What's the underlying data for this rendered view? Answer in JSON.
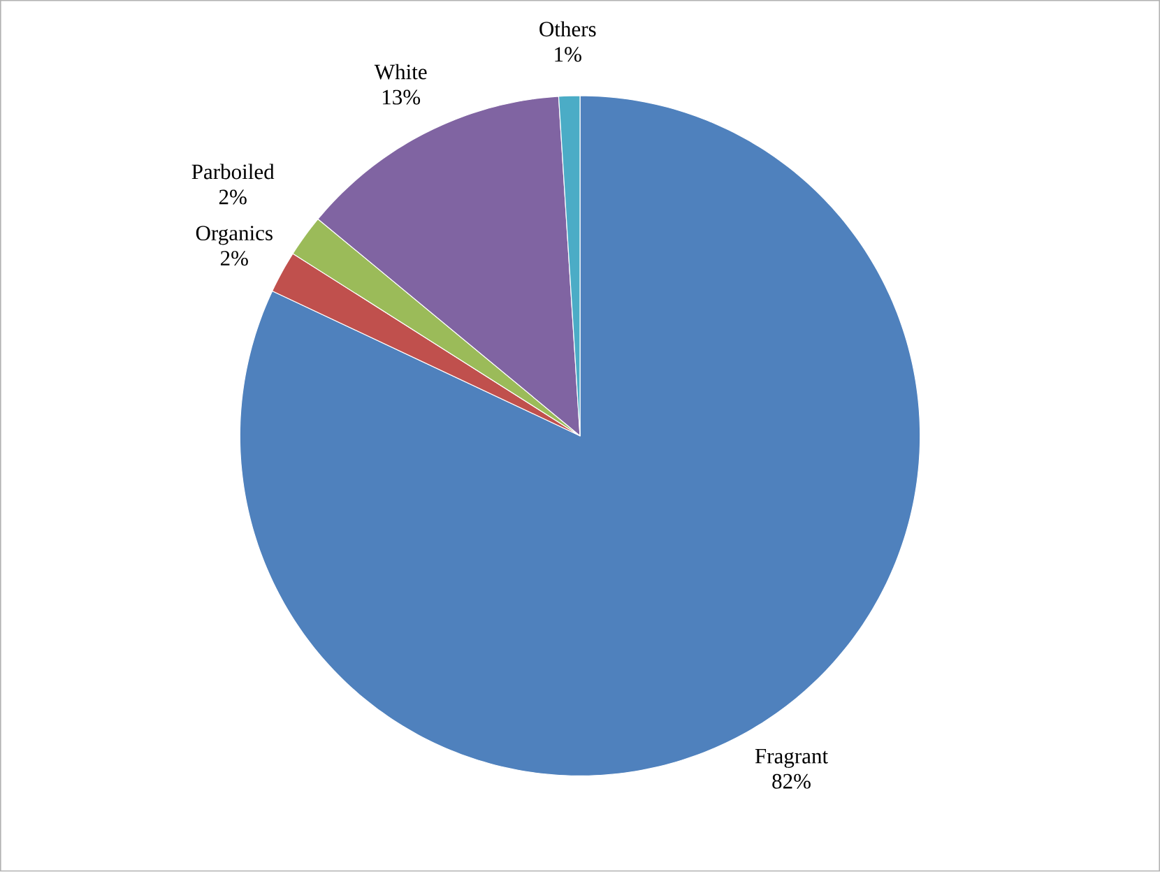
{
  "chart_data": {
    "type": "pie",
    "categories": [
      "Fragrant",
      "Organics",
      "Parboiled",
      "White",
      "Others"
    ],
    "values": [
      82,
      2,
      2,
      13,
      1
    ],
    "value_labels": [
      "82%",
      "2%",
      "2%",
      "13%",
      "1%"
    ],
    "colors": [
      "#4f81bd",
      "#c0504d",
      "#9bbb59",
      "#8064a2",
      "#4bacc6"
    ]
  }
}
